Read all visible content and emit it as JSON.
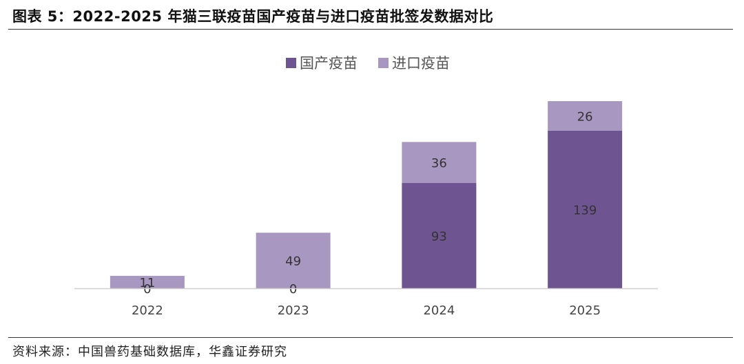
{
  "title": "图表 5：2022-2025 年猫三联疫苗国产疫苗与进口疫苗批签发数据对比",
  "source": "资料来源：中国兽药基础数据库，华鑫证券研究",
  "colors": {
    "domestic": "#6e5490",
    "imported": "#a897c0",
    "axis": "#d0d0d0"
  },
  "chart_data": {
    "type": "bar",
    "stacked": true,
    "categories": [
      "2022",
      "2023",
      "2024",
      "2025"
    ],
    "series": [
      {
        "name": "国产疫苗",
        "values": [
          0,
          0,
          93,
          139
        ]
      },
      {
        "name": "进口疫苗",
        "values": [
          11,
          49,
          36,
          26
        ]
      }
    ],
    "ylim": [
      0,
      165
    ],
    "grid": false,
    "legend": "top-center",
    "title": "",
    "xlabel": "",
    "ylabel": ""
  }
}
